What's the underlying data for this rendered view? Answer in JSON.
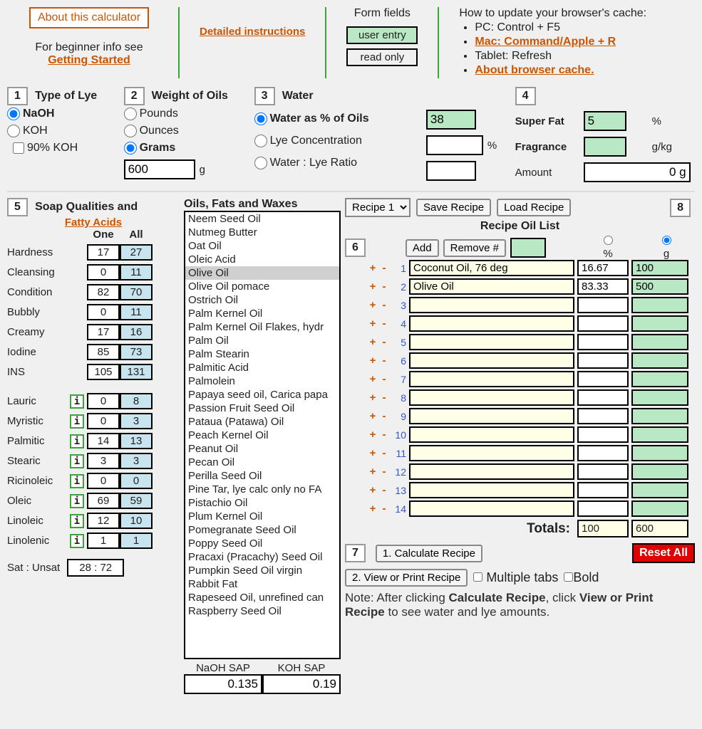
{
  "colors": {
    "orange": "#cc5500",
    "green_bg": "#b8e8c4",
    "blue_bg": "#c8e4ee",
    "cream": "#ffffe8",
    "red": "#e00000",
    "page_bg": "#f0f0f0"
  },
  "top": {
    "about_btn": "About this calculator",
    "beginner_text": "For beginner info see",
    "getting_started": "Getting Started",
    "detailed_instructions": "Detailed instructions",
    "form_fields_label": "Form fields",
    "user_entry": "user entry",
    "read_only": "read only",
    "cache_title": "How to update your browser's cache:",
    "cache_items": {
      "pc": "PC: Control + F5",
      "mac": "Mac: Command/Apple + R",
      "tablet": "Tablet: Refresh",
      "about": "About browser cache."
    }
  },
  "step1": {
    "num": "1",
    "label": "Type of Lye",
    "naoh": "NaOH",
    "koh": "KOH",
    "koh90": "90% KOH"
  },
  "step2": {
    "num": "2",
    "label": "Weight of Oils",
    "pounds": "Pounds",
    "ounces": "Ounces",
    "grams": "Grams",
    "value": "600",
    "unit": "g"
  },
  "step3": {
    "num": "3",
    "label": "Water",
    "opt_pct": "Water as % of Oils",
    "opt_conc": "Lye Concentration",
    "opt_ratio": "Water : Lye Ratio",
    "pct_value": "38",
    "pct_sym": "%"
  },
  "step4": {
    "num": "4",
    "super_fat_label": "Super Fat",
    "super_fat_value": "5",
    "super_fat_unit": "%",
    "fragrance_label": "Fragrance",
    "fragrance_value": "",
    "fragrance_unit": "g/kg",
    "amount_label": "Amount",
    "amount_value": "0 g"
  },
  "step5": {
    "num": "5",
    "label": "Soap Qualities and",
    "link": "Fatty Acids",
    "hdr_one": "One",
    "hdr_all": "All",
    "qualities": [
      {
        "name": "Hardness",
        "one": "17",
        "all": "27"
      },
      {
        "name": "Cleansing",
        "one": "0",
        "all": "11"
      },
      {
        "name": "Condition",
        "one": "82",
        "all": "70"
      },
      {
        "name": "Bubbly",
        "one": "0",
        "all": "11"
      },
      {
        "name": "Creamy",
        "one": "17",
        "all": "16"
      },
      {
        "name": "Iodine",
        "one": "85",
        "all": "73"
      },
      {
        "name": "INS",
        "one": "105",
        "all": "131"
      }
    ],
    "acids": [
      {
        "name": "Lauric",
        "one": "0",
        "all": "8"
      },
      {
        "name": "Myristic",
        "one": "0",
        "all": "3"
      },
      {
        "name": "Palmitic",
        "one": "14",
        "all": "13"
      },
      {
        "name": "Stearic",
        "one": "3",
        "all": "3"
      },
      {
        "name": "Ricinoleic",
        "one": "0",
        "all": "0"
      },
      {
        "name": "Oleic",
        "one": "69",
        "all": "59"
      },
      {
        "name": "Linoleic",
        "one": "12",
        "all": "10"
      },
      {
        "name": "Linolenic",
        "one": "1",
        "all": "1"
      }
    ],
    "sat_label": "Sat : Unsat",
    "sat_value": "28 : 72"
  },
  "oils": {
    "title": "Oils, Fats and Waxes",
    "list": [
      "Neem Seed Oil",
      "Nutmeg Butter",
      "Oat Oil",
      "Oleic Acid",
      "Olive Oil",
      "Olive Oil pomace",
      "Ostrich Oil",
      "Palm Kernel Oil",
      "Palm Kernel Oil Flakes, hydr",
      "Palm Oil",
      "Palm Stearin",
      "Palmitic Acid",
      "Palmolein",
      "Papaya seed oil, Carica papa",
      "Passion Fruit Seed Oil",
      "Pataua (Patawa) Oil",
      "Peach Kernel Oil",
      "Peanut Oil",
      "Pecan Oil",
      "Perilla Seed Oil",
      "Pine Tar, lye calc only no FA",
      "Pistachio Oil",
      "Plum Kernel Oil",
      "Pomegranate Seed Oil",
      "Poppy Seed Oil",
      "Pracaxi (Pracachy) Seed Oil",
      "Pumpkin Seed Oil virgin",
      "Rabbit Fat",
      "Rapeseed Oil, unrefined can",
      "Raspberry Seed Oil"
    ],
    "selected_index": 4,
    "naoh_sap_label": "NaOH SAP",
    "koh_sap_label": "KOH SAP",
    "naoh_sap": "0.135",
    "koh_sap": "0.19"
  },
  "recipe": {
    "select_value": "Recipe 1",
    "save_btn": "Save Recipe",
    "load_btn": "Load Recipe",
    "step8": "8",
    "title": "Recipe Oil List",
    "step6": "6",
    "add_btn": "Add",
    "remove_btn": "Remove #",
    "remove_value": "",
    "pct_hdr": "%",
    "g_hdr": "g",
    "rows": [
      {
        "n": "1",
        "oil": "Coconut Oil, 76 deg",
        "pct": "16.67",
        "g": "100"
      },
      {
        "n": "2",
        "oil": "Olive Oil",
        "pct": "83.33",
        "g": "500"
      },
      {
        "n": "3",
        "oil": "",
        "pct": "",
        "g": ""
      },
      {
        "n": "4",
        "oil": "",
        "pct": "",
        "g": ""
      },
      {
        "n": "5",
        "oil": "",
        "pct": "",
        "g": ""
      },
      {
        "n": "6",
        "oil": "",
        "pct": "",
        "g": ""
      },
      {
        "n": "7",
        "oil": "",
        "pct": "",
        "g": ""
      },
      {
        "n": "8",
        "oil": "",
        "pct": "",
        "g": ""
      },
      {
        "n": "9",
        "oil": "",
        "pct": "",
        "g": ""
      },
      {
        "n": "10",
        "oil": "",
        "pct": "",
        "g": ""
      },
      {
        "n": "11",
        "oil": "",
        "pct": "",
        "g": ""
      },
      {
        "n": "12",
        "oil": "",
        "pct": "",
        "g": ""
      },
      {
        "n": "13",
        "oil": "",
        "pct": "",
        "g": ""
      },
      {
        "n": "14",
        "oil": "",
        "pct": "",
        "g": ""
      }
    ],
    "totals_label": "Totals:",
    "total_pct": "100",
    "total_g": "600",
    "step7": "7",
    "calc_btn": "1. Calculate Recipe",
    "reset_btn": "Reset All",
    "view_btn": "2. View or Print Recipe",
    "multi_tabs": "Multiple tabs",
    "bold": "Bold",
    "note_1": "Note: After clicking ",
    "note_2": "Calculate Recipe",
    "note_3": ", click ",
    "note_4": "View or Print Recipe",
    "note_5": " to see water and lye amounts."
  }
}
